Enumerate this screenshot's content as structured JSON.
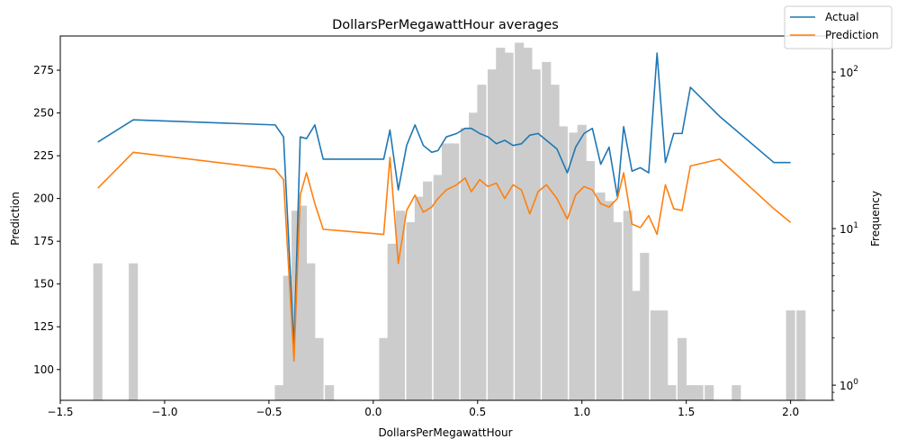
{
  "chart_data": {
    "type": "line",
    "title": "DollarsPerMegawattHour averages",
    "xlabel": "DollarsPerMegawattHour",
    "ylabel": "Prediction",
    "y2label": "Frequency",
    "xlim": [
      -1.5,
      2.2
    ],
    "ylim": [
      82,
      295
    ],
    "y2_scale": "log",
    "y2lim": [
      0.8,
      170
    ],
    "x_ticks": [
      -1.5,
      -1.0,
      -0.5,
      0.0,
      0.5,
      1.0,
      1.5,
      2.0
    ],
    "x_tick_labels": [
      "−1.5",
      "−1.0",
      "−0.5",
      "0.0",
      "0.5",
      "1.0",
      "1.5",
      "2.0"
    ],
    "y_ticks": [
      100,
      125,
      150,
      175,
      200,
      225,
      250,
      275
    ],
    "y_tick_labels": [
      "100",
      "125",
      "150",
      "175",
      "200",
      "225",
      "250",
      "275"
    ],
    "y2_ticks": [
      1,
      10,
      100
    ],
    "y2_tick_labels": [
      "10^0",
      "10^1",
      "10^2"
    ],
    "legend": {
      "placement": "top-right",
      "entries": [
        "Actual",
        "Prediction"
      ]
    },
    "grid": false,
    "series": [
      {
        "name": "Actual",
        "color": "#1f77b4",
        "x": [
          -1.32,
          -1.15,
          -0.47,
          -0.43,
          -0.38,
          -0.35,
          -0.32,
          -0.28,
          -0.24,
          0.05,
          0.08,
          0.12,
          0.16,
          0.2,
          0.24,
          0.28,
          0.31,
          0.35,
          0.4,
          0.44,
          0.47,
          0.51,
          0.55,
          0.59,
          0.63,
          0.67,
          0.71,
          0.75,
          0.79,
          0.83,
          0.88,
          0.93,
          0.97,
          1.01,
          1.05,
          1.09,
          1.13,
          1.17,
          1.2,
          1.24,
          1.28,
          1.32,
          1.36,
          1.4,
          1.44,
          1.48,
          1.52,
          1.66,
          1.92,
          2.0
        ],
        "y": [
          233,
          246,
          243,
          236,
          113,
          236,
          235,
          243,
          223,
          223,
          240,
          205,
          231,
          243,
          231,
          227,
          228,
          236,
          238,
          241,
          241,
          238,
          236,
          232,
          234,
          231,
          232,
          237,
          238,
          234,
          229,
          215,
          230,
          238,
          241,
          220,
          230,
          201,
          242,
          216,
          218,
          215,
          285,
          221,
          238,
          238,
          265,
          248,
          221,
          221
        ]
      },
      {
        "name": "Prediction",
        "color": "#ff7f0e",
        "x": [
          -1.32,
          -1.15,
          -0.47,
          -0.43,
          -0.38,
          -0.35,
          -0.32,
          -0.28,
          -0.24,
          0.05,
          0.08,
          0.12,
          0.16,
          0.2,
          0.24,
          0.28,
          0.31,
          0.35,
          0.4,
          0.44,
          0.47,
          0.51,
          0.55,
          0.59,
          0.63,
          0.67,
          0.71,
          0.75,
          0.79,
          0.83,
          0.88,
          0.93,
          0.97,
          1.01,
          1.05,
          1.09,
          1.13,
          1.17,
          1.2,
          1.24,
          1.28,
          1.32,
          1.36,
          1.4,
          1.44,
          1.48,
          1.52,
          1.66,
          1.92,
          2.0
        ],
        "y": [
          206,
          227,
          217,
          211,
          105,
          202,
          215,
          197,
          182,
          179,
          224,
          162,
          193,
          202,
          192,
          195,
          200,
          205,
          208,
          212,
          204,
          211,
          207,
          209,
          200,
          208,
          205,
          191,
          204,
          208,
          200,
          188,
          202,
          207,
          205,
          197,
          195,
          200,
          215,
          185,
          183,
          190,
          179,
          208,
          194,
          193,
          219,
          223,
          194,
          186
        ]
      }
    ],
    "histogram": {
      "name": "Frequency",
      "color": "#cccccc",
      "bin_width": 0.0435,
      "bins": [
        [
          -1.32,
          6
        ],
        [
          -1.15,
          6
        ],
        [
          -0.45,
          1
        ],
        [
          -0.41,
          5
        ],
        [
          -0.37,
          13
        ],
        [
          -0.34,
          14
        ],
        [
          -0.3,
          6
        ],
        [
          -0.26,
          2
        ],
        [
          -0.21,
          1
        ],
        [
          0.05,
          2
        ],
        [
          0.09,
          8
        ],
        [
          0.13,
          13
        ],
        [
          0.18,
          11
        ],
        [
          0.22,
          16
        ],
        [
          0.26,
          20
        ],
        [
          0.31,
          22
        ],
        [
          0.35,
          35
        ],
        [
          0.39,
          35
        ],
        [
          0.44,
          44
        ],
        [
          0.48,
          55
        ],
        [
          0.52,
          83
        ],
        [
          0.57,
          104
        ],
        [
          0.61,
          143
        ],
        [
          0.65,
          133
        ],
        [
          0.7,
          154
        ],
        [
          0.74,
          143
        ],
        [
          0.78,
          104
        ],
        [
          0.83,
          116
        ],
        [
          0.87,
          83
        ],
        [
          0.91,
          45
        ],
        [
          0.96,
          41
        ],
        [
          1.0,
          46
        ],
        [
          1.04,
          27
        ],
        [
          1.09,
          17
        ],
        [
          1.13,
          15
        ],
        [
          1.17,
          11
        ],
        [
          1.22,
          13
        ],
        [
          1.26,
          4
        ],
        [
          1.3,
          7
        ],
        [
          1.35,
          3
        ],
        [
          1.39,
          3
        ],
        [
          1.43,
          1
        ],
        [
          1.48,
          2
        ],
        [
          1.52,
          1
        ],
        [
          1.56,
          1
        ],
        [
          1.61,
          1
        ],
        [
          1.74,
          1
        ],
        [
          2.0,
          3
        ],
        [
          2.05,
          3
        ]
      ]
    }
  }
}
